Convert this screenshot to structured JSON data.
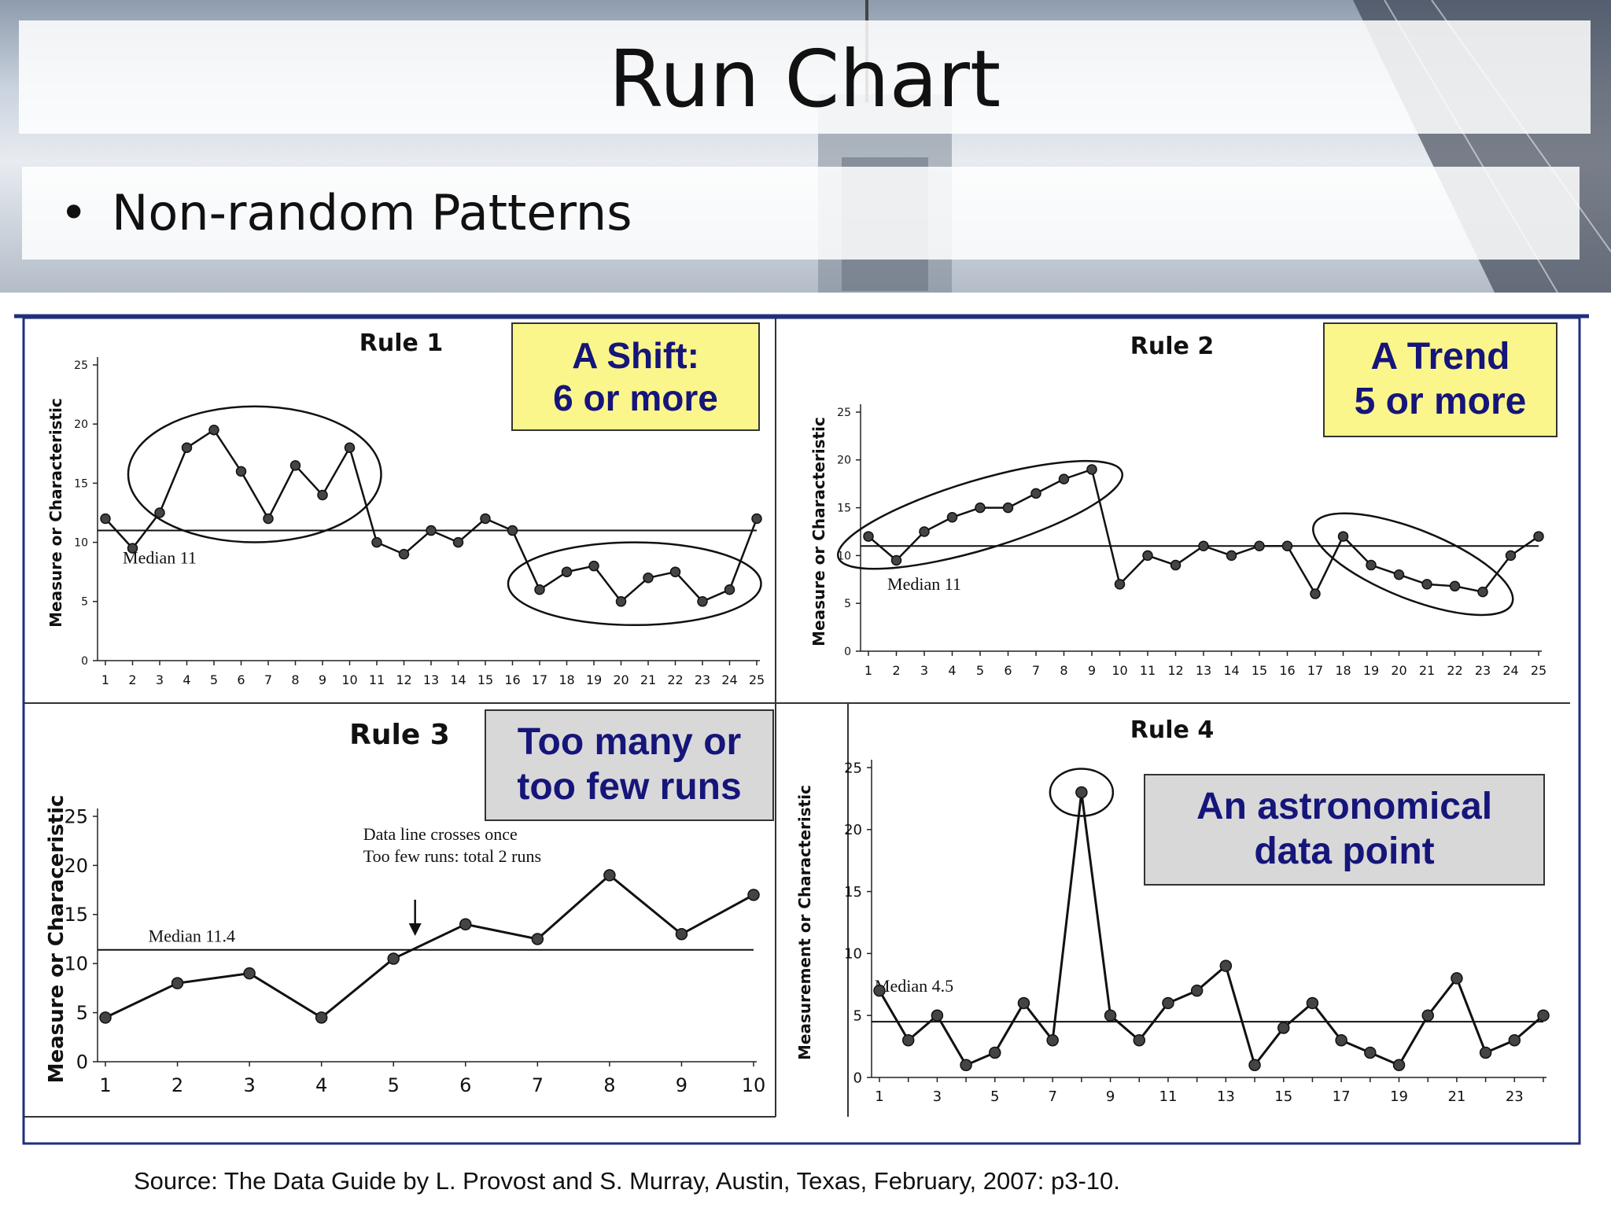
{
  "slide": {
    "title": "Run Chart",
    "bullet": "Non-random Patterns",
    "source": "Source: The Data Guide by L. Provost and S. Murray, Austin, Texas, February, 2007: p3-10."
  },
  "colors": {
    "ink": "#111111",
    "callout_text": "#15157a",
    "yellow_callout": "#fbf68c",
    "gray_callout": "#d8d8d8",
    "frame": "#1f2f7a"
  },
  "chart_data": [
    {
      "type": "line",
      "title": "Rule 1",
      "callout": "A Shift:\n6 or more",
      "callout_style": "yellow",
      "ylabel": "Measure or Characteristic",
      "ylim": [
        0,
        25
      ],
      "yticks": [
        0,
        5,
        10,
        15,
        20,
        25
      ],
      "x": [
        1,
        2,
        3,
        4,
        5,
        6,
        7,
        8,
        9,
        10,
        11,
        12,
        13,
        14,
        15,
        16,
        17,
        18,
        19,
        20,
        21,
        22,
        23,
        24,
        25
      ],
      "xtick_labels": [
        "1",
        "2",
        "3",
        "4",
        "5",
        "6",
        "7",
        "8",
        "9",
        "10",
        "11",
        "12",
        "13",
        "14",
        "15",
        "16",
        "17",
        "18",
        "19",
        "20",
        "21",
        "22",
        "23",
        "24",
        "25"
      ],
      "values": [
        12,
        9.5,
        12.5,
        18,
        19.5,
        16,
        12,
        16.5,
        14,
        18,
        10,
        9,
        11,
        10,
        12,
        11,
        6,
        7.5,
        8,
        5,
        7,
        7.5,
        5,
        6,
        12
      ],
      "median": 11,
      "median_label": "Median 11",
      "highlight_groups": [
        [
          3,
          10
        ],
        [
          17,
          24
        ]
      ]
    },
    {
      "type": "line",
      "title": "Rule 2",
      "callout": "A Trend\n5 or more",
      "callout_style": "yellow",
      "ylabel": "Measure or Characteristic",
      "ylim": [
        0,
        25
      ],
      "yticks": [
        0,
        5,
        10,
        15,
        20,
        25
      ],
      "x": [
        1,
        2,
        3,
        4,
        5,
        6,
        7,
        8,
        9,
        10,
        11,
        12,
        13,
        14,
        15,
        16,
        17,
        18,
        19,
        20,
        21,
        22,
        23,
        24,
        25
      ],
      "xtick_labels": [
        "1",
        "2",
        "3",
        "4",
        "5",
        "6",
        "7",
        "8",
        "9",
        "10",
        "11",
        "12",
        "13",
        "14",
        "15",
        "16",
        "17",
        "18",
        "19",
        "20",
        "21",
        "22",
        "23",
        "24",
        "25"
      ],
      "values": [
        12,
        9.5,
        12.5,
        14,
        15,
        15,
        16.5,
        18,
        19,
        7,
        10,
        9,
        11,
        10,
        11,
        11,
        6,
        12,
        9,
        8,
        7,
        6.8,
        6.2,
        10,
        12
      ],
      "median": 11,
      "median_label": "Median 11",
      "highlight_groups": [
        [
          1,
          9
        ],
        [
          18,
          23
        ]
      ]
    },
    {
      "type": "line",
      "title": "Rule 3",
      "callout": "Too many or\ntoo few runs",
      "callout_style": "gray",
      "ylabel": "Measure or Characeristic",
      "ylim": [
        0,
        25
      ],
      "yticks": [
        0,
        5,
        10,
        15,
        20,
        25
      ],
      "x": [
        1,
        2,
        3,
        4,
        5,
        6,
        7,
        8,
        9,
        10
      ],
      "xtick_labels": [
        "1",
        "2",
        "3",
        "4",
        "5",
        "6",
        "7",
        "8",
        "9",
        "10"
      ],
      "values": [
        4.5,
        8,
        9,
        4.5,
        10.5,
        14,
        12.5,
        19,
        13,
        17
      ],
      "median": 11.4,
      "median_label": "Median 11.4",
      "annotation": "Data line crosses once\nToo few runs: total 2 runs",
      "arrow_at_x": 5.3
    },
    {
      "type": "line",
      "title": "Rule 4",
      "callout": "An astronomical\ndata point",
      "callout_style": "gray",
      "ylabel": "Measurement or Characteristic",
      "ylim": [
        0,
        25
      ],
      "yticks": [
        0,
        5,
        10,
        15,
        20,
        25
      ],
      "x": [
        1,
        2,
        3,
        4,
        5,
        6,
        7,
        8,
        9,
        10,
        11,
        12,
        13,
        14,
        15,
        16,
        17,
        18,
        19,
        20,
        21,
        22,
        23,
        24
      ],
      "xtick_labels": [
        "1",
        "3",
        "5",
        "7",
        "9",
        "11",
        "13",
        "15",
        "17",
        "19",
        "21",
        "23"
      ],
      "values": [
        7,
        3,
        5,
        1,
        2,
        6,
        3,
        23,
        5,
        3,
        6,
        7,
        9,
        1,
        4,
        6,
        3,
        2,
        1,
        5,
        8,
        2,
        3,
        5
      ],
      "median": 4.5,
      "median_label": "Median 4.5",
      "highlight_groups": [
        [
          8,
          8
        ]
      ]
    }
  ]
}
